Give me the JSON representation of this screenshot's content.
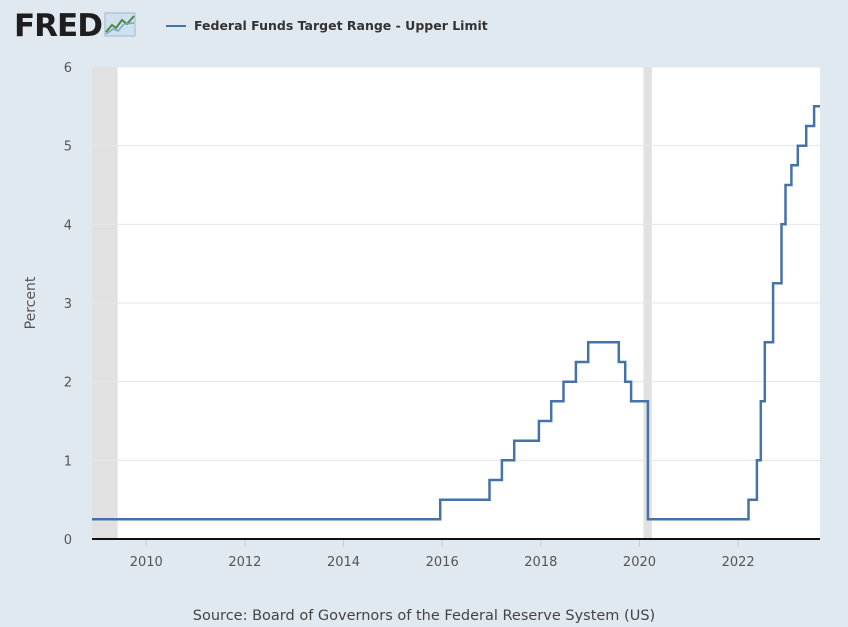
{
  "logo": {
    "text": "FRED",
    "icon": "fred-chart-icon"
  },
  "legend": {
    "label": "Federal Funds Target Range - Upper Limit",
    "color": "#4572a7"
  },
  "source": "Source: Board of Governors of the Federal Reserve System (US)",
  "colors": {
    "background": "#e1e9f0",
    "plot": "#ffffff",
    "line": "#4572a7",
    "recession": "#e1e1e1"
  },
  "chart_data": {
    "type": "line",
    "title": "",
    "xlabel": "",
    "ylabel": "Percent",
    "xlim": [
      2008.9,
      2023.66
    ],
    "ylim": [
      0,
      6
    ],
    "yticks": [
      0,
      1,
      2,
      3,
      4,
      5,
      6
    ],
    "xticks": [
      2010,
      2012,
      2014,
      2016,
      2018,
      2020,
      2022
    ],
    "grid": true,
    "legend_position": "top-left",
    "recessions": [
      [
        2008.9,
        2009.42
      ],
      [
        2020.08,
        2020.25
      ]
    ],
    "series": [
      {
        "name": "Federal Funds Target Range - Upper Limit",
        "step": true,
        "x": [
          2008.9,
          2015.96,
          2016.96,
          2017.21,
          2017.46,
          2017.96,
          2018.21,
          2018.46,
          2018.71,
          2018.96,
          2019.58,
          2019.71,
          2019.83,
          2020.17,
          2022.21,
          2022.38,
          2022.46,
          2022.54,
          2022.71,
          2022.88,
          2022.96,
          2023.08,
          2023.21,
          2023.38,
          2023.54,
          2023.66
        ],
        "y": [
          0.25,
          0.5,
          0.75,
          1.0,
          1.25,
          1.5,
          1.75,
          2.0,
          2.25,
          2.5,
          2.25,
          2.0,
          1.75,
          0.25,
          0.5,
          1.0,
          1.75,
          2.5,
          3.25,
          4.0,
          4.5,
          4.75,
          5.0,
          5.25,
          5.5,
          5.5
        ]
      }
    ]
  }
}
